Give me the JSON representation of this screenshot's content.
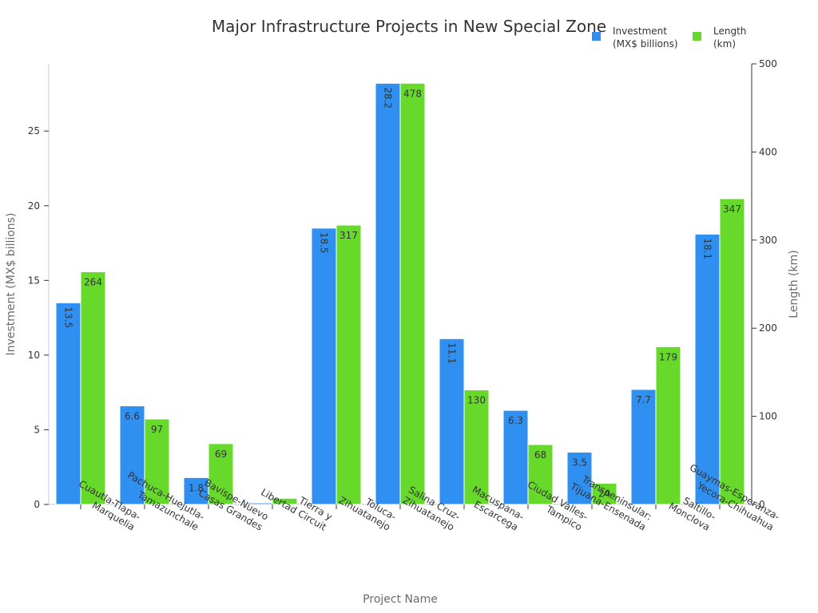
{
  "chart_data": {
    "type": "bar",
    "title": "Major Infrastructure Projects in New Special Zone",
    "xlabel": "Project Name",
    "ylabel_left": "Investment (MX$ billions)",
    "ylabel_right": "Length (km)",
    "ylim_left": [
      0,
      29.5
    ],
    "ylim_right": [
      0,
      500
    ],
    "yticks_left": [
      0,
      5,
      10,
      15,
      20,
      25
    ],
    "yticks_right": [
      0,
      100,
      200,
      300,
      400,
      500
    ],
    "categories": [
      [
        "Cuautla-Tlapa-",
        "Marquelia"
      ],
      [
        "Pachuca-Huejutla-",
        "Tamazunchale"
      ],
      [
        "Bavispe-Nuevo",
        "Casas Grandes"
      ],
      [
        "Tierra y",
        "Libertad Circuit"
      ],
      [
        "Toluca-",
        "Zihuatanejo"
      ],
      [
        "Salina Cruz-",
        "Zihuatanejo"
      ],
      [
        "Macuspana-",
        "Escarcega"
      ],
      [
        "Ciudad Valles-",
        "Tampico"
      ],
      [
        "Transpeninsular:",
        "Tijuana-Ensenada"
      ],
      [
        "Saltillo-",
        "Monclova"
      ],
      [
        "Guaymas-Esperanza-",
        "Yecora-Chihuahua"
      ]
    ],
    "series": [
      {
        "name": "Investment\n(MX$ billions)",
        "axis": "left",
        "color": "#2f90f2",
        "values": [
          13.5,
          6.6,
          1.8,
          0.1,
          18.5,
          28.2,
          11.1,
          6.3,
          3.5,
          7.7,
          18.1
        ],
        "labels": [
          "13.5",
          "6.6",
          "1.8",
          "",
          "18.5",
          "28.2",
          "11.1",
          "6.3",
          "3.5",
          "7.7",
          "18.1"
        ],
        "label_rotated": [
          true,
          false,
          false,
          false,
          true,
          true,
          true,
          false,
          false,
          false,
          true
        ]
      },
      {
        "name": "Length\n(km)",
        "axis": "right",
        "color": "#66d92b",
        "values": [
          264,
          97,
          69,
          7,
          317,
          478,
          130,
          68,
          24,
          179,
          347
        ],
        "labels": [
          "264",
          "97",
          "69",
          "",
          "317",
          "478",
          "130",
          "68",
          "24",
          "179",
          "347"
        ],
        "label_rotated": [
          false,
          false,
          false,
          false,
          false,
          false,
          false,
          false,
          false,
          false,
          false
        ]
      }
    ],
    "legend_position": "top-right"
  }
}
